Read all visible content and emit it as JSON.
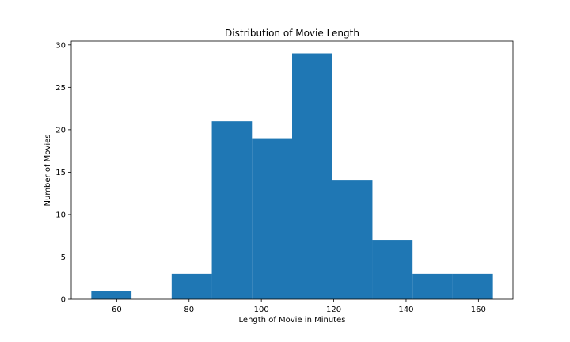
{
  "chart_data": {
    "type": "bar",
    "title": "Distribution of Movie Length",
    "xlabel": "Length of Movie in Minutes",
    "ylabel": "Number of Movies",
    "bins": [
      {
        "start": 53.0,
        "end": 64.1,
        "count": 1
      },
      {
        "start": 64.1,
        "end": 75.2,
        "count": 0
      },
      {
        "start": 75.2,
        "end": 86.3,
        "count": 3
      },
      {
        "start": 86.3,
        "end": 97.4,
        "count": 21
      },
      {
        "start": 97.4,
        "end": 108.5,
        "count": 19
      },
      {
        "start": 108.5,
        "end": 119.6,
        "count": 29
      },
      {
        "start": 119.6,
        "end": 130.7,
        "count": 14
      },
      {
        "start": 130.7,
        "end": 141.8,
        "count": 7
      },
      {
        "start": 141.8,
        "end": 152.9,
        "count": 3
      },
      {
        "start": 152.9,
        "end": 164.0,
        "count": 3
      }
    ],
    "xlim": [
      47.45,
      169.55
    ],
    "ylim": [
      0,
      30.45
    ],
    "xticks": [
      60,
      80,
      100,
      120,
      140,
      160
    ],
    "yticks": [
      0,
      5,
      10,
      15,
      20,
      25,
      30
    ],
    "bar_color": "#1f77b4",
    "grid": false,
    "legend": "none"
  }
}
